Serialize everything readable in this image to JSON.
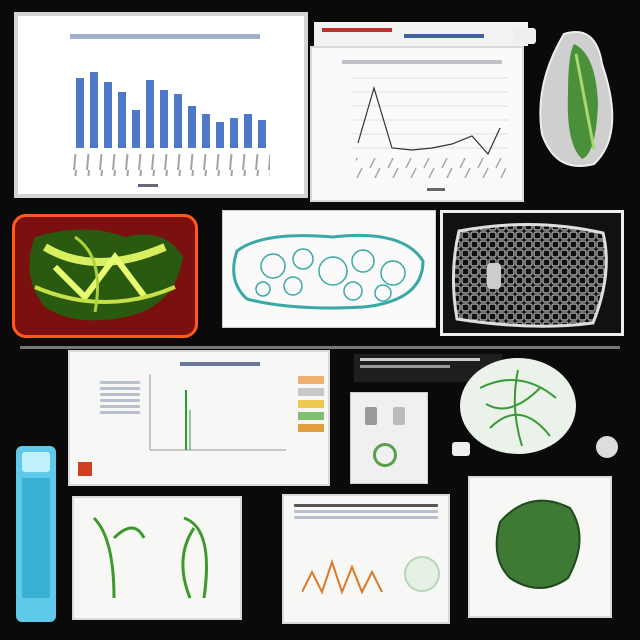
{
  "panels": {
    "bar_chart": {
      "title_text": "",
      "colors": {
        "bar": "#4f78c8",
        "grid": "#d8dce4",
        "frame": "#c9ccd2"
      }
    },
    "line_chart": {
      "colors": {
        "line": "#333333",
        "grid": "#d0d0d0"
      }
    },
    "tray_preview": {
      "colors": {
        "ridge": "#d8d8d8",
        "leaf": "#4a8f3a"
      }
    },
    "thermal_scan": {
      "colors": {
        "bg": "#7a1010",
        "edge": "#ff5a1a",
        "glow": "#d8f060"
      }
    },
    "cell_sketch": {
      "colors": {
        "stroke": "#3aa9a6"
      }
    },
    "mesh_sample": {
      "colors": {
        "mesh": "#8a8a8a"
      }
    },
    "report_sheet": {
      "colors": {
        "accent": "#d04020",
        "spike": "#2c9b3a"
      }
    },
    "device_card": {
      "colors": {
        "ring": "#5aa04a"
      }
    },
    "leaf_map": {
      "colors": {
        "vein": "#3a9a3a"
      }
    },
    "vial": {
      "colors": {
        "glass": "#5ec9e8"
      }
    },
    "plant_sketch": {
      "colors": {
        "stroke": "#3c9a2c"
      }
    },
    "wave_sheet": {
      "colors": {
        "wave": "#d87a2a"
      }
    },
    "leaf_specimen": {
      "colors": {
        "leaf": "#3e7a34"
      }
    }
  }
}
